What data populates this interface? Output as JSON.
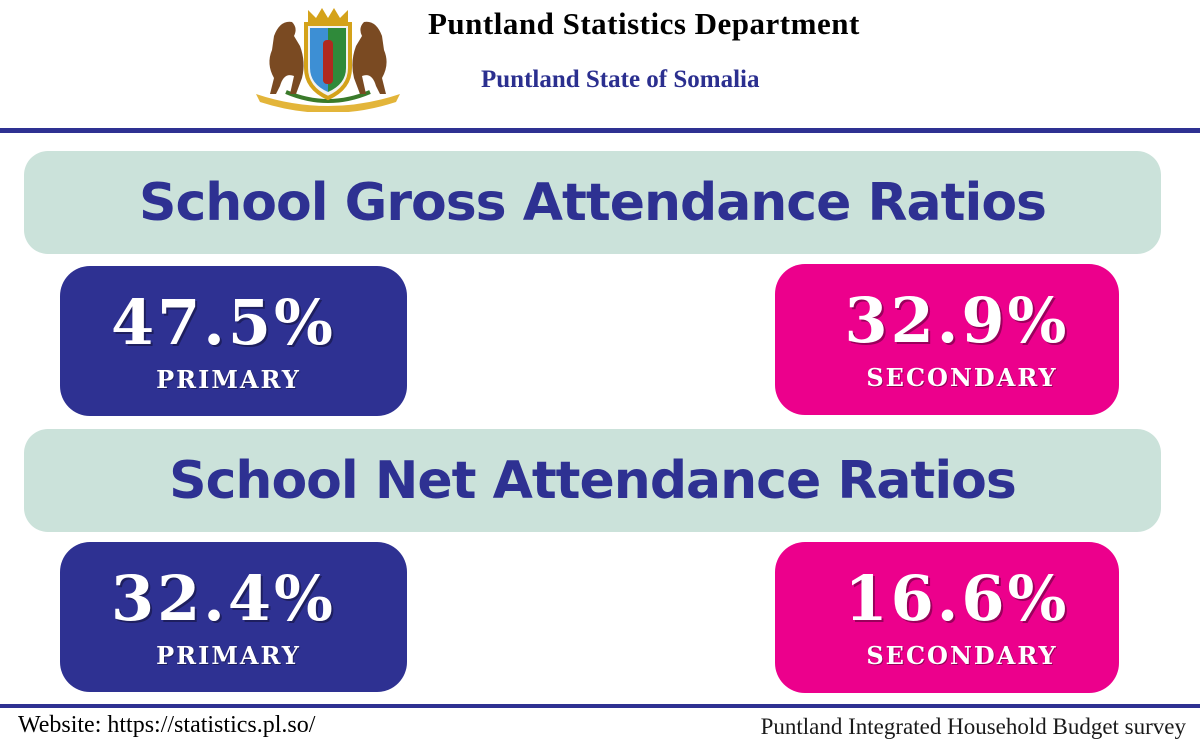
{
  "header": {
    "title": "Puntland Statistics Department",
    "subtitle": "Puntland State of Somalia",
    "emblem_icon": "coat-of-arms-icon"
  },
  "colors": {
    "navy": "#2e3192",
    "pink": "#ec008c",
    "banner": "#cbe2da"
  },
  "gross": {
    "heading": "School Gross Attendance Ratios",
    "primary": {
      "value": "47.5%",
      "label": "PRIMARY"
    },
    "secondary": {
      "value": "32.9%",
      "label": "SECONDARY"
    }
  },
  "net": {
    "heading": "School Net Attendance Ratios",
    "primary": {
      "value": "32.4%",
      "label": "PRIMARY"
    },
    "secondary": {
      "value": "16.6%",
      "label": "SECONDARY"
    }
  },
  "footer": {
    "website": "Website: https://statistics.pl.so/",
    "survey": "Puntland Integrated Household Budget survey"
  }
}
